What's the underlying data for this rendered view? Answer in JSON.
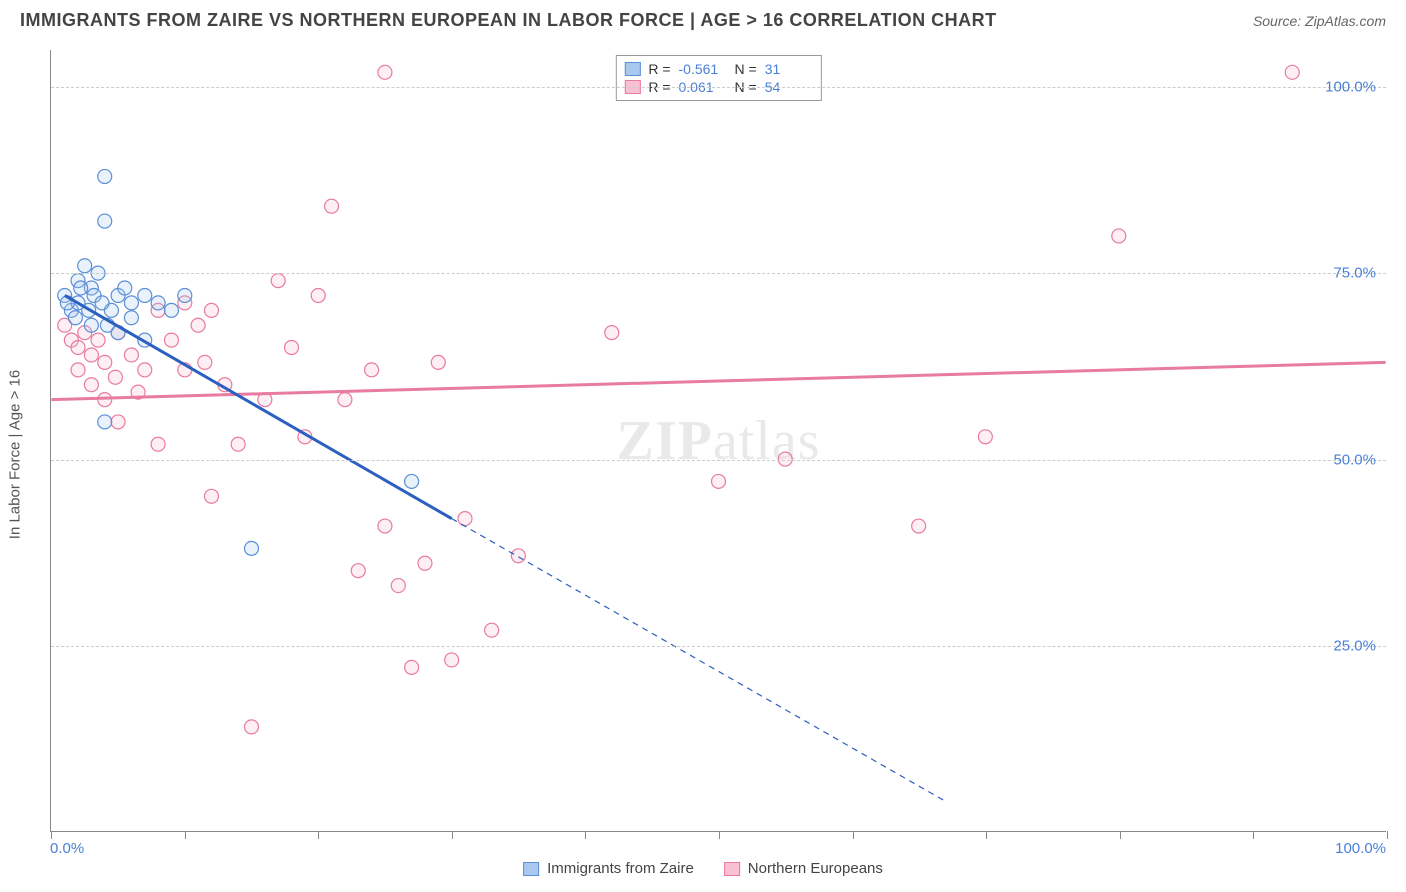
{
  "header": {
    "title": "IMMIGRANTS FROM ZAIRE VS NORTHERN EUROPEAN IN LABOR FORCE | AGE > 16 CORRELATION CHART",
    "source_prefix": "Source: ",
    "source_name": "ZipAtlas.com"
  },
  "chart": {
    "type": "scatter",
    "y_axis_title": "In Labor Force | Age > 16",
    "background_color": "#ffffff",
    "grid_color": "#cccccc",
    "axis_color": "#888888",
    "xlim": [
      0,
      100
    ],
    "ylim": [
      0,
      105
    ],
    "x_ticks": [
      0,
      10,
      20,
      30,
      40,
      50,
      60,
      70,
      80,
      90,
      100
    ],
    "x_tick_labels": {
      "0": "0.0%",
      "100": "100.0%"
    },
    "y_gridlines": [
      25,
      50,
      75,
      100
    ],
    "y_tick_labels": {
      "25": "25.0%",
      "50": "50.0%",
      "75": "75.0%",
      "100": "100.0%"
    },
    "tick_label_color": "#4a7fd8",
    "tick_label_fontsize": 15,
    "marker_radius": 7,
    "marker_stroke_width": 1.2,
    "marker_fill_opacity": 0.25,
    "trend_line_width": 3,
    "watermark_text_a": "ZIP",
    "watermark_text_b": "atlas",
    "series": {
      "zaire": {
        "label": "Immigrants from Zaire",
        "color_fill": "#a8c8f0",
        "color_stroke": "#5b8fd6",
        "R": "-0.561",
        "N": "31",
        "trend": {
          "x1": 1,
          "y1": 72,
          "x2": 30,
          "y2": 42,
          "ext_x2": 67,
          "ext_y2": 4
        },
        "points": [
          [
            1,
            72
          ],
          [
            1.5,
            70
          ],
          [
            2,
            71
          ],
          [
            2,
            74
          ],
          [
            2.5,
            76
          ],
          [
            3,
            73
          ],
          [
            3,
            68
          ],
          [
            3.5,
            75
          ],
          [
            4,
            88
          ],
          [
            4,
            82
          ],
          [
            4.5,
            70
          ],
          [
            5,
            72
          ],
          [
            5,
            67
          ],
          [
            5.5,
            73
          ],
          [
            6,
            71
          ],
          [
            6,
            69
          ],
          [
            7,
            72
          ],
          [
            7,
            66
          ],
          [
            8,
            71
          ],
          [
            9,
            70
          ],
          [
            10,
            72
          ],
          [
            4,
            55
          ],
          [
            15,
            38
          ],
          [
            27,
            47
          ],
          [
            1.2,
            71
          ],
          [
            1.8,
            69
          ],
          [
            2.2,
            73
          ],
          [
            2.8,
            70
          ],
          [
            3.2,
            72
          ],
          [
            3.8,
            71
          ],
          [
            4.2,
            68
          ]
        ]
      },
      "neuro": {
        "label": "Northern Europeans",
        "color_fill": "#f8c0d0",
        "color_stroke": "#e87ba0",
        "R": "0.061",
        "N": "54",
        "trend": {
          "x1": 0,
          "y1": 58,
          "x2": 100,
          "y2": 63
        },
        "points": [
          [
            1,
            68
          ],
          [
            1.5,
            66
          ],
          [
            2,
            65
          ],
          [
            2,
            62
          ],
          [
            2.5,
            67
          ],
          [
            3,
            64
          ],
          [
            3,
            60
          ],
          [
            3.5,
            66
          ],
          [
            4,
            63
          ],
          [
            4,
            58
          ],
          [
            5,
            67
          ],
          [
            5,
            55
          ],
          [
            6,
            64
          ],
          [
            7,
            62
          ],
          [
            8,
            52
          ],
          [
            8,
            70
          ],
          [
            10,
            71
          ],
          [
            10,
            62
          ],
          [
            11,
            68
          ],
          [
            12,
            45
          ],
          [
            12,
            70
          ],
          [
            13,
            60
          ],
          [
            14,
            52
          ],
          [
            15,
            14
          ],
          [
            16,
            58
          ],
          [
            17,
            74
          ],
          [
            18,
            65
          ],
          [
            19,
            53
          ],
          [
            20,
            72
          ],
          [
            21,
            84
          ],
          [
            22,
            58
          ],
          [
            23,
            35
          ],
          [
            24,
            62
          ],
          [
            25,
            102
          ],
          [
            25,
            41
          ],
          [
            26,
            33
          ],
          [
            27,
            22
          ],
          [
            28,
            36
          ],
          [
            29,
            63
          ],
          [
            30,
            23
          ],
          [
            31,
            42
          ],
          [
            33,
            27
          ],
          [
            35,
            37
          ],
          [
            42,
            67
          ],
          [
            50,
            47
          ],
          [
            55,
            50
          ],
          [
            65,
            41
          ],
          [
            70,
            53
          ],
          [
            80,
            80
          ],
          [
            93,
            102
          ],
          [
            4.8,
            61
          ],
          [
            6.5,
            59
          ],
          [
            9,
            66
          ],
          [
            11.5,
            63
          ]
        ]
      }
    },
    "stats_box": {
      "R_label": "R =",
      "N_label": "N ="
    }
  }
}
